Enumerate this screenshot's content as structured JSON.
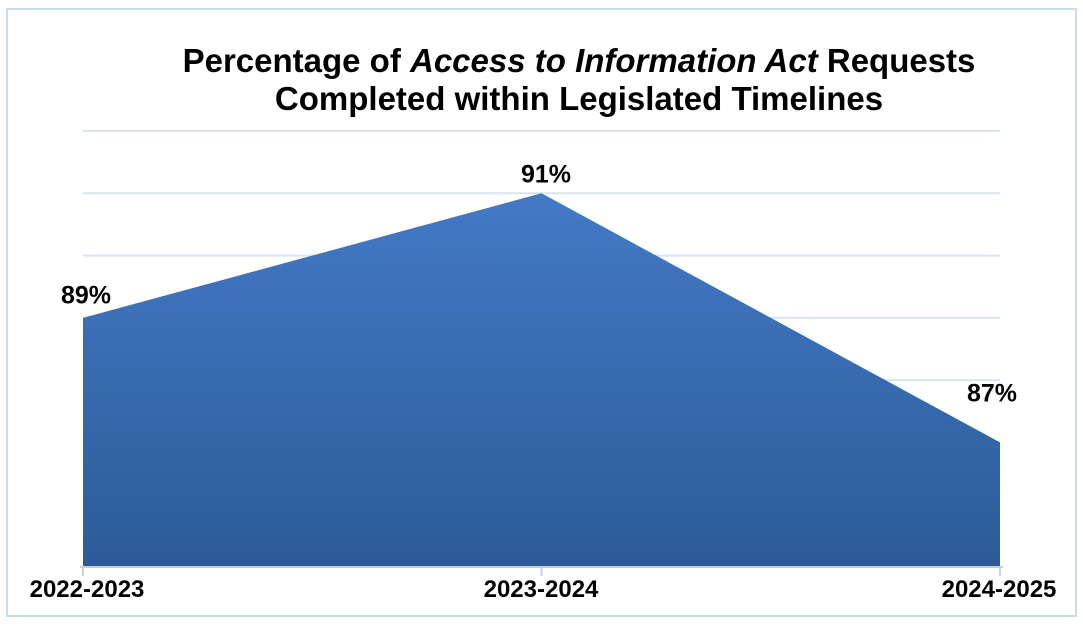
{
  "title": {
    "prefix": "Percentage of ",
    "italic": "Access to Information Act",
    "suffix": " Requests",
    "line2": "Completed within Legislated Timelines"
  },
  "chart_data": {
    "type": "area",
    "title": "Percentage of Access to Information Act Requests Completed within Legislated Timelines",
    "categories": [
      "2022-2023",
      "2023-2024",
      "2024-2025"
    ],
    "values": [
      89,
      91,
      87
    ],
    "data_labels": [
      "89%",
      "91%",
      "87%"
    ],
    "xlabel": "",
    "ylabel": "",
    "ylim": [
      85,
      92
    ],
    "gridlines": "horizontal, every 1 percentage point",
    "legend": "none",
    "colors": {
      "area_top": "#4379c6",
      "area_bottom": "#2c5b97",
      "gridline": "#d9e4f1",
      "axis_line": "#c9cdd2",
      "tick": "#bdd7ee",
      "page_border": "#c9dcef",
      "text": "#000000"
    }
  }
}
